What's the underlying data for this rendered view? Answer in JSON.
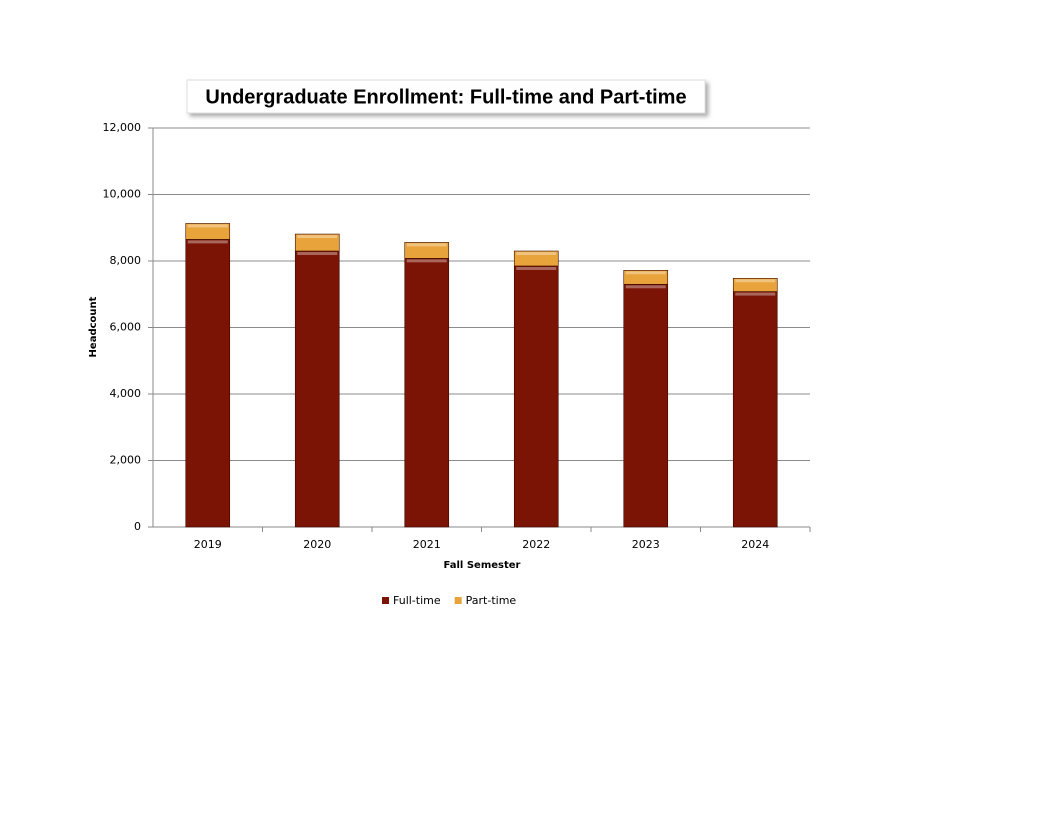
{
  "chart_data": {
    "type": "stacked_bar",
    "title": "Undergraduate Enrollment: Full-time and Part-time",
    "x_label": "Fall Semester",
    "y_label": "Headcount",
    "categories": [
      "2019",
      "2020",
      "2021",
      "2022",
      "2023",
      "2024"
    ],
    "series": [
      {
        "name": "Full-time",
        "color": "#7b1405",
        "values": [
          8650,
          8300,
          8080,
          7850,
          7300,
          7080
        ]
      },
      {
        "name": "Part-time",
        "color": "#e8a33a",
        "values": [
          480,
          510,
          480,
          450,
          420,
          400
        ]
      }
    ],
    "ylim": [
      0,
      12000
    ],
    "yticks": [
      0,
      {
        "value": 2000,
        "label": "2,000"
      },
      {
        "value": 4000,
        "label": "4,000"
      },
      {
        "value": 6000,
        "label": "6,000"
      },
      {
        "value": 8000,
        "label": "8,000"
      },
      {
        "value": 10000,
        "label": "10,000"
      },
      {
        "value": 12000,
        "label": "12,000"
      }
    ],
    "grid": true,
    "legend": "bottom"
  }
}
